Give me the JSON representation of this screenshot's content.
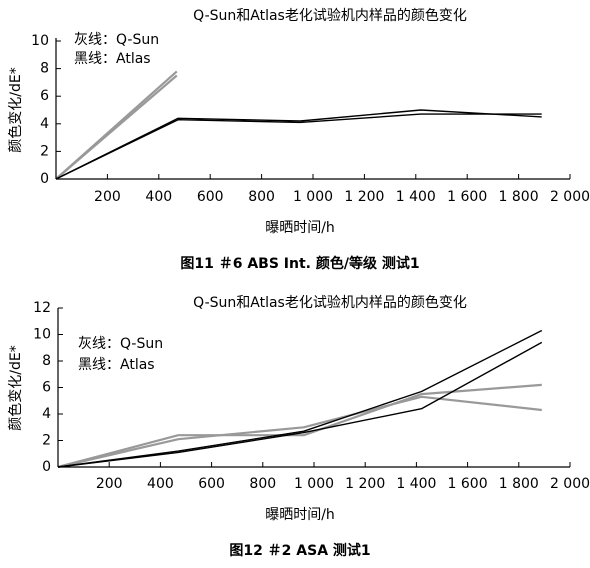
{
  "chart_data": [
    {
      "type": "line",
      "title": "Q-Sun和Atlas老化试验机内样品的颜色变化",
      "xlabel": "曝晒时间/h",
      "ylabel": "颜色变化/dE*",
      "caption": "图11 ＃6 ABS Int. 颜色/等级 测试1",
      "xlim": [
        0,
        2000
      ],
      "ylim": [
        0,
        10
      ],
      "x_ticks": [
        200,
        400,
        600,
        800,
        1000,
        1200,
        1400,
        1600,
        1800,
        2000
      ],
      "x_tick_labels": [
        "200",
        "400",
        "600",
        "800",
        "1 000",
        "1 200",
        "1 400",
        "1 600",
        "1 800",
        "2 000"
      ],
      "y_ticks": [
        0,
        2,
        4,
        6,
        8,
        10
      ],
      "y_tick_labels": [
        "0",
        "2",
        "4",
        "6",
        "8",
        "10"
      ],
      "legend": [
        "灰线：Q-Sun",
        "黑线：Atlas"
      ],
      "legend_position": "top-left",
      "grid": false,
      "series": [
        {
          "color": "#999999",
          "x": [
            0,
            470
          ],
          "y": [
            0,
            7.8
          ]
        },
        {
          "color": "#999999",
          "x": [
            0,
            470
          ],
          "y": [
            0,
            7.5
          ]
        },
        {
          "color": "#000000",
          "x": [
            0,
            475,
            950,
            1420,
            1890
          ],
          "y": [
            0,
            4.4,
            4.2,
            5.0,
            4.5
          ]
        },
        {
          "color": "#000000",
          "x": [
            0,
            475,
            950,
            1420,
            1890
          ],
          "y": [
            0,
            4.3,
            4.1,
            4.7,
            4.7
          ]
        }
      ]
    },
    {
      "type": "line",
      "title": "Q-Sun和Atlas老化试验机内样品的颜色变化",
      "xlabel": "曝晒时间/h",
      "ylabel": "颜色变化/dE*",
      "caption": "图12 ＃2 ASA 测试1",
      "xlim": [
        0,
        2000
      ],
      "ylim": [
        0,
        12
      ],
      "x_ticks": [
        200,
        400,
        600,
        800,
        1000,
        1200,
        1400,
        1600,
        1800,
        2000
      ],
      "x_tick_labels": [
        "200",
        "400",
        "600",
        "800",
        "1 000",
        "1 200",
        "1 400",
        "1 600",
        "1 800",
        "2 000"
      ],
      "y_ticks": [
        0,
        2,
        4,
        6,
        8,
        10,
        12
      ],
      "y_tick_labels": [
        "0",
        "2",
        "4",
        "6",
        "8",
        "10",
        "12"
      ],
      "legend": [
        "灰线：Q-Sun",
        "黑线：Atlas"
      ],
      "legend_position": "top-left",
      "grid": false,
      "series": [
        {
          "color": "#999999",
          "x": [
            0,
            470,
            960,
            1420,
            1890
          ],
          "y": [
            0,
            2.4,
            2.4,
            5.5,
            6.2
          ]
        },
        {
          "color": "#999999",
          "x": [
            0,
            470,
            960,
            1420,
            1890
          ],
          "y": [
            0,
            2.1,
            3.0,
            5.3,
            4.3
          ]
        },
        {
          "color": "#000000",
          "x": [
            0,
            470,
            960,
            1420,
            1890
          ],
          "y": [
            0,
            1.2,
            2.7,
            5.7,
            10.3
          ]
        },
        {
          "color": "#000000",
          "x": [
            0,
            470,
            960,
            1420,
            1890
          ],
          "y": [
            0,
            1.1,
            2.6,
            4.4,
            9.4
          ]
        }
      ]
    }
  ]
}
